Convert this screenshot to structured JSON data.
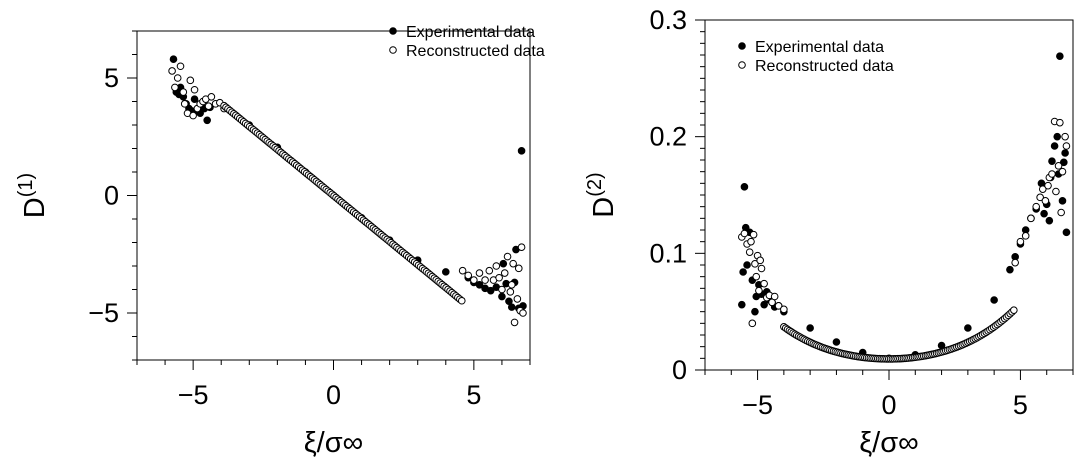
{
  "chart_data": [
    {
      "type": "scatter",
      "title": "",
      "xlabel": "ξ/σ∞",
      "ylabel": "D",
      "ylabel_sup": "(1)",
      "xlim": [
        -7,
        7
      ],
      "ylim": [
        -7,
        7
      ],
      "xticks": [
        -5,
        0,
        5
      ],
      "xtick_labels": [
        "−5",
        "0",
        "5"
      ],
      "yticks": [
        -5,
        0,
        5
      ],
      "ytick_labels": [
        "−5",
        "0",
        "5"
      ],
      "legend_position": "top-right",
      "grid": false,
      "series": [
        {
          "name": "Experimental data",
          "marker": "filled-circle",
          "points": [
            [
              -5.7,
              5.8
            ],
            [
              -5.6,
              4.4
            ],
            [
              -5.5,
              4.3
            ],
            [
              -5.45,
              4.6
            ],
            [
              -5.35,
              4.2
            ],
            [
              -5.25,
              3.9
            ],
            [
              -5.15,
              3.7
            ],
            [
              -5.05,
              3.6
            ],
            [
              -4.95,
              4.1
            ],
            [
              -4.85,
              3.6
            ],
            [
              -4.75,
              3.5
            ],
            [
              -4.6,
              3.7
            ],
            [
              -4.5,
              3.2
            ],
            [
              -4.4,
              3.75
            ],
            [
              -3.0,
              3.0
            ],
            [
              -2.0,
              2.05
            ],
            [
              -1.0,
              1.0
            ],
            [
              0.0,
              0.0
            ],
            [
              1.0,
              -0.95
            ],
            [
              2.0,
              -1.9
            ],
            [
              3.0,
              -2.75
            ],
            [
              4.0,
              -3.25
            ],
            [
              4.8,
              -3.5
            ],
            [
              5.0,
              -3.7
            ],
            [
              5.2,
              -3.8
            ],
            [
              5.4,
              -3.95
            ],
            [
              5.6,
              -4.05
            ],
            [
              5.8,
              -3.9
            ],
            [
              6.0,
              -4.3
            ],
            [
              6.05,
              -2.9
            ],
            [
              6.15,
              -3.75
            ],
            [
              6.25,
              -4.5
            ],
            [
              6.35,
              -4.75
            ],
            [
              6.45,
              -3.7
            ],
            [
              6.5,
              -2.3
            ],
            [
              6.6,
              -4.8
            ],
            [
              6.7,
              1.9
            ],
            [
              6.75,
              -4.7
            ]
          ]
        },
        {
          "name": "Reconstructed data",
          "marker": "open-circle",
          "points": [
            [
              -5.75,
              5.3
            ],
            [
              -5.65,
              4.6
            ],
            [
              -5.55,
              5.0
            ],
            [
              -5.45,
              5.5
            ],
            [
              -5.35,
              4.4
            ],
            [
              -5.3,
              3.9
            ],
            [
              -5.2,
              3.5
            ],
            [
              -5.1,
              4.9
            ],
            [
              -5.0,
              3.4
            ],
            [
              -4.95,
              4.5
            ],
            [
              -4.85,
              3.7
            ],
            [
              -4.75,
              3.9
            ],
            [
              -4.65,
              4.0
            ],
            [
              -4.55,
              4.1
            ],
            [
              -4.45,
              3.8
            ],
            [
              -4.35,
              4.2
            ],
            [
              -4.2,
              3.9
            ],
            [
              -4.05,
              3.95
            ],
            [
              -3.9,
              3.7
            ],
            [
              4.6,
              -3.2
            ],
            [
              4.8,
              -3.4
            ],
            [
              5.0,
              -3.6
            ],
            [
              5.2,
              -3.3
            ],
            [
              5.4,
              -3.6
            ],
            [
              5.55,
              -3.2
            ],
            [
              5.7,
              -3.6
            ],
            [
              5.8,
              -3.0
            ],
            [
              5.9,
              -3.5
            ],
            [
              6.0,
              -4.0
            ],
            [
              6.1,
              -3.3
            ],
            [
              6.2,
              -2.6
            ],
            [
              6.3,
              -4.1
            ],
            [
              6.35,
              -3.8
            ],
            [
              6.4,
              -2.9
            ],
            [
              6.45,
              -5.4
            ],
            [
              6.55,
              -4.4
            ],
            [
              6.6,
              -3.1
            ],
            [
              6.65,
              -4.9
            ],
            [
              6.7,
              -2.2
            ],
            [
              6.75,
              -5.0
            ]
          ]
        }
      ]
    },
    {
      "type": "scatter",
      "title": "",
      "xlabel": "ξ/σ∞",
      "ylabel": "D",
      "ylabel_sup": "(2)",
      "xlim": [
        -7,
        7
      ],
      "ylim": [
        0,
        0.3
      ],
      "xticks": [
        -5,
        0,
        5
      ],
      "xtick_labels": [
        "−5",
        "0",
        "5"
      ],
      "yticks": [
        0,
        0.1,
        0.2,
        0.3
      ],
      "ytick_labels": [
        "0",
        "0.1",
        "0.2",
        "0.3"
      ],
      "legend_position": "top-left",
      "grid": false,
      "series": [
        {
          "name": "Experimental data",
          "marker": "filled-circle",
          "points": [
            [
              -5.6,
              0.056
            ],
            [
              -5.55,
              0.084
            ],
            [
              -5.5,
              0.157
            ],
            [
              -5.45,
              0.122
            ],
            [
              -5.4,
              0.09
            ],
            [
              -5.3,
              0.118
            ],
            [
              -5.2,
              0.077
            ],
            [
              -5.1,
              0.05
            ],
            [
              -5.05,
              0.063
            ],
            [
              -4.95,
              0.073
            ],
            [
              -4.85,
              0.065
            ],
            [
              -4.75,
              0.056
            ],
            [
              -4.65,
              0.067
            ],
            [
              -4.55,
              0.06
            ],
            [
              -4.45,
              0.058
            ],
            [
              -4.35,
              0.054
            ],
            [
              -4.2,
              0.055
            ],
            [
              -4.0,
              0.05
            ],
            [
              -3.0,
              0.036
            ],
            [
              -2.0,
              0.024
            ],
            [
              -1.0,
              0.015
            ],
            [
              0.0,
              0.01
            ],
            [
              1.0,
              0.013
            ],
            [
              2.0,
              0.021
            ],
            [
              3.0,
              0.036
            ],
            [
              4.0,
              0.06
            ],
            [
              4.6,
              0.086
            ],
            [
              4.8,
              0.097
            ],
            [
              5.0,
              0.108
            ],
            [
              5.2,
              0.12
            ],
            [
              5.4,
              0.13
            ],
            [
              5.6,
              0.138
            ],
            [
              5.8,
              0.16
            ],
            [
              5.9,
              0.134
            ],
            [
              6.0,
              0.142
            ],
            [
              6.1,
              0.128
            ],
            [
              6.15,
              0.165
            ],
            [
              6.2,
              0.179
            ],
            [
              6.3,
              0.192
            ],
            [
              6.4,
              0.2
            ],
            [
              6.45,
              0.168
            ],
            [
              6.5,
              0.269
            ],
            [
              6.6,
              0.145
            ],
            [
              6.65,
              0.178
            ],
            [
              6.7,
              0.186
            ],
            [
              6.75,
              0.118
            ]
          ]
        },
        {
          "name": "Reconstructed data",
          "marker": "open-circle",
          "points": [
            [
              -5.6,
              0.114
            ],
            [
              -5.5,
              0.117
            ],
            [
              -5.4,
              0.108
            ],
            [
              -5.3,
              0.101
            ],
            [
              -5.25,
              0.11
            ],
            [
              -5.2,
              0.04
            ],
            [
              -5.15,
              0.116
            ],
            [
              -5.1,
              0.091
            ],
            [
              -5.05,
              0.08
            ],
            [
              -5.0,
              0.098
            ],
            [
              -4.95,
              0.068
            ],
            [
              -4.9,
              0.094
            ],
            [
              -4.85,
              0.087
            ],
            [
              -4.75,
              0.074
            ],
            [
              -4.65,
              0.062
            ],
            [
              -4.55,
              0.064
            ],
            [
              -4.45,
              0.058
            ],
            [
              -4.35,
              0.063
            ],
            [
              -4.2,
              0.055
            ],
            [
              -4.0,
              0.052
            ],
            [
              4.8,
              0.092
            ],
            [
              5.0,
              0.11
            ],
            [
              5.2,
              0.115
            ],
            [
              5.4,
              0.13
            ],
            [
              5.6,
              0.14
            ],
            [
              5.75,
              0.148
            ],
            [
              5.85,
              0.155
            ],
            [
              5.95,
              0.145
            ],
            [
              6.05,
              0.158
            ],
            [
              6.1,
              0.165
            ],
            [
              6.2,
              0.168
            ],
            [
              6.3,
              0.213
            ],
            [
              6.35,
              0.153
            ],
            [
              6.45,
              0.175
            ],
            [
              6.5,
              0.212
            ],
            [
              6.55,
              0.135
            ],
            [
              6.6,
              0.17
            ],
            [
              6.7,
              0.2
            ],
            [
              6.75,
              0.192
            ]
          ]
        }
      ]
    }
  ]
}
